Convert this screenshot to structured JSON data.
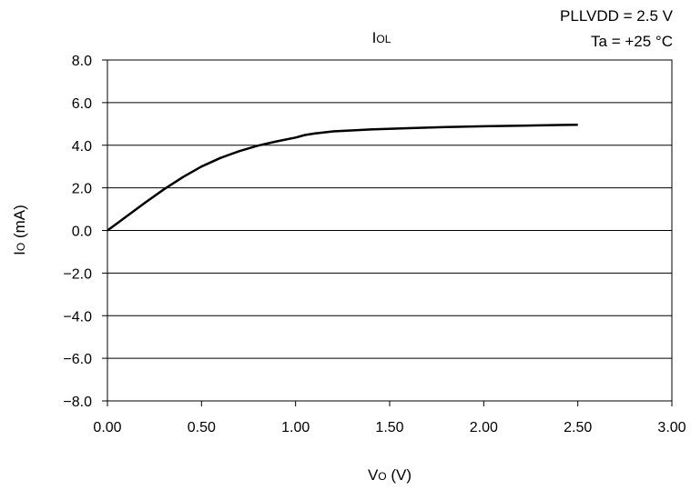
{
  "chart_data": {
    "type": "line",
    "title": {
      "main": "I",
      "sub": "OL"
    },
    "conditions": [
      "PLLVDD = 2.5 V",
      "Ta = +25 °C"
    ],
    "xlabel": {
      "main": "V",
      "sub": "O",
      "unit": " (V)"
    },
    "ylabel": {
      "main": "I",
      "sub": "O",
      "unit": " (mA)"
    },
    "xlim": [
      0,
      3
    ],
    "ylim": [
      -8,
      8
    ],
    "xticks": [
      "0.00",
      "0.50",
      "1.00",
      "1.50",
      "2.00",
      "2.50",
      "3.00"
    ],
    "yticks": [
      "8.0",
      "6.0",
      "4.0",
      "2.0",
      "0.0",
      "−2.0",
      "−4.0",
      "−6.0",
      "−8.0"
    ],
    "grid": "horizontal",
    "series": [
      {
        "x": [
          0,
          0.1,
          0.2,
          0.3,
          0.4,
          0.5,
          0.6,
          0.7,
          0.8,
          0.9,
          1.0,
          1.05,
          1.1,
          1.2,
          1.4,
          1.6,
          1.8,
          2.0,
          2.2,
          2.4,
          2.5
        ],
        "y": [
          0,
          0.65,
          1.3,
          1.93,
          2.5,
          3.0,
          3.4,
          3.72,
          3.98,
          4.18,
          4.36,
          4.48,
          4.55,
          4.65,
          4.74,
          4.8,
          4.85,
          4.89,
          4.92,
          4.95,
          4.96
        ],
        "color": "#000000"
      }
    ]
  }
}
